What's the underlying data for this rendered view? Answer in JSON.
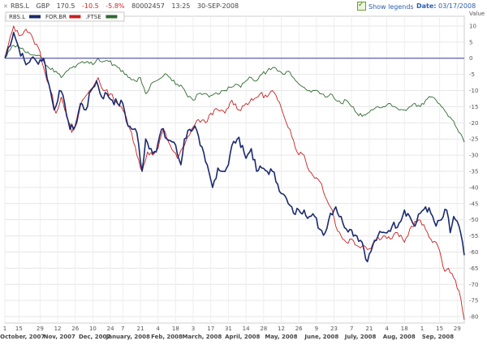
{
  "header": {
    "symbol": "RBS.L",
    "currency": "GBP",
    "price": "170.5",
    "change": "-10.5",
    "change_pct": "-5.8%",
    "volume": "80002457",
    "time": "13:25",
    "date": "30-SEP-2008",
    "show_legends_label": "Show legends",
    "date_label": "Date:",
    "date_value": "03/17/2008"
  },
  "colors": {
    "RBS.L": "#1a2a6e",
    "FOR.BR": "#c82020",
    "FTSE": "#2f6a2f",
    "zero_line": "#3a3aa0"
  },
  "chart_data": {
    "type": "line",
    "title": "",
    "ylabel": "Value",
    "ylim": [
      -82,
      12
    ],
    "grid": true,
    "legend": "top-left",
    "y_ticks": [
      10,
      5,
      0,
      -5,
      -10,
      -15,
      -20,
      -25,
      -30,
      -35,
      -40,
      -45,
      -50,
      -55,
      -60,
      -65,
      -70,
      -75,
      -80
    ],
    "day_ticks": [
      {
        "label": "1",
        "i": 0
      },
      {
        "label": "15",
        "i": 8
      },
      {
        "label": "29",
        "i": 20
      },
      {
        "label": "12",
        "i": 30
      },
      {
        "label": "26",
        "i": 40
      },
      {
        "label": "10",
        "i": 50
      },
      {
        "label": "24",
        "i": 60
      },
      {
        "label": "7",
        "i": 67
      },
      {
        "label": "21",
        "i": 77
      },
      {
        "label": "4",
        "i": 87
      },
      {
        "label": "18",
        "i": 97
      },
      {
        "label": "3",
        "i": 107
      },
      {
        "label": "17",
        "i": 117
      },
      {
        "label": "31",
        "i": 127
      },
      {
        "label": "14",
        "i": 137
      },
      {
        "label": "28",
        "i": 147
      },
      {
        "label": "12",
        "i": 157
      },
      {
        "label": "26",
        "i": 167
      },
      {
        "label": "9",
        "i": 177
      },
      {
        "label": "23",
        "i": 187
      },
      {
        "label": "7",
        "i": 197
      },
      {
        "label": "21",
        "i": 207
      },
      {
        "label": "4",
        "i": 217
      },
      {
        "label": "18",
        "i": 227
      },
      {
        "label": "1",
        "i": 237
      },
      {
        "label": "15",
        "i": 247
      },
      {
        "label": "29",
        "i": 257
      }
    ],
    "months": [
      {
        "label": "October, 2007",
        "i": 10
      },
      {
        "label": "Nov, 2007",
        "i": 31
      },
      {
        "label": "Dec, 2007",
        "i": 51
      },
      {
        "label": "January, 2008",
        "i": 70
      },
      {
        "label": "Feb, 2008",
        "i": 92
      },
      {
        "label": "March, 2008",
        "i": 112
      },
      {
        "label": "April, 2008",
        "i": 135
      },
      {
        "label": "May, 2008",
        "i": 157
      },
      {
        "label": "June, 2008",
        "i": 180
      },
      {
        "label": "July, 2008",
        "i": 202
      },
      {
        "label": "Aug, 2008",
        "i": 224
      },
      {
        "label": "Sep, 2008",
        "i": 246
      }
    ],
    "n_points": 262,
    "series": [
      {
        "name": "RBS.L",
        "anchors": [
          [
            0,
            0
          ],
          [
            5,
            8
          ],
          [
            8,
            3
          ],
          [
            12,
            -2
          ],
          [
            15,
            0
          ],
          [
            18,
            -1
          ],
          [
            22,
            0
          ],
          [
            25,
            -8
          ],
          [
            28,
            -16
          ],
          [
            31,
            -10
          ],
          [
            34,
            -14
          ],
          [
            37,
            -22
          ],
          [
            40,
            -21
          ],
          [
            43,
            -14
          ],
          [
            46,
            -16
          ],
          [
            49,
            -10
          ],
          [
            52,
            -7
          ],
          [
            55,
            -12
          ],
          [
            58,
            -11
          ],
          [
            61,
            -13
          ],
          [
            64,
            -14
          ],
          [
            67,
            -14
          ],
          [
            70,
            -21
          ],
          [
            73,
            -22
          ],
          [
            75,
            -23
          ],
          [
            78,
            -35
          ],
          [
            80,
            -25
          ],
          [
            83,
            -28
          ],
          [
            86,
            -29
          ],
          [
            89,
            -22
          ],
          [
            92,
            -25
          ],
          [
            96,
            -26
          ],
          [
            100,
            -33
          ],
          [
            102,
            -25
          ],
          [
            105,
            -22
          ],
          [
            108,
            -21
          ],
          [
            111,
            -27
          ],
          [
            114,
            -32
          ],
          [
            118,
            -40
          ],
          [
            121,
            -34
          ],
          [
            124,
            -35
          ],
          [
            127,
            -33
          ],
          [
            129,
            -27
          ],
          [
            132,
            -25
          ],
          [
            135,
            -27
          ],
          [
            137,
            -31
          ],
          [
            140,
            -28
          ],
          [
            143,
            -35
          ],
          [
            146,
            -34
          ],
          [
            149,
            -35
          ],
          [
            152,
            -35
          ],
          [
            155,
            -39
          ],
          [
            158,
            -42
          ],
          [
            161,
            -45
          ],
          [
            164,
            -48
          ],
          [
            167,
            -47
          ],
          [
            170,
            -47
          ],
          [
            173,
            -49
          ],
          [
            176,
            -49
          ],
          [
            179,
            -53
          ],
          [
            182,
            -54
          ],
          [
            185,
            -48
          ],
          [
            188,
            -46
          ],
          [
            192,
            -51
          ],
          [
            196,
            -53
          ],
          [
            200,
            -55
          ],
          [
            203,
            -57
          ],
          [
            206,
            -63
          ],
          [
            209,
            -58
          ],
          [
            212,
            -55
          ],
          [
            216,
            -54
          ],
          [
            220,
            -52
          ],
          [
            224,
            -51
          ],
          [
            227,
            -47
          ],
          [
            230,
            -49
          ],
          [
            233,
            -52
          ],
          [
            236,
            -48
          ],
          [
            239,
            -46
          ],
          [
            242,
            -48
          ],
          [
            245,
            -52
          ],
          [
            248,
            -50
          ],
          [
            251,
            -47
          ],
          [
            253,
            -54
          ],
          [
            255,
            -49
          ],
          [
            258,
            -52
          ],
          [
            261,
            -61
          ]
        ]
      },
      {
        "name": "FOR.BR",
        "anchors": [
          [
            0,
            0
          ],
          [
            5,
            10
          ],
          [
            8,
            7
          ],
          [
            12,
            9
          ],
          [
            16,
            6
          ],
          [
            20,
            2
          ],
          [
            23,
            -5
          ],
          [
            26,
            -10
          ],
          [
            29,
            -17
          ],
          [
            32,
            -12
          ],
          [
            35,
            -17
          ],
          [
            38,
            -23
          ],
          [
            41,
            -20
          ],
          [
            44,
            -13
          ],
          [
            47,
            -11
          ],
          [
            50,
            -9
          ],
          [
            53,
            -6
          ],
          [
            56,
            -10
          ],
          [
            60,
            -11
          ],
          [
            64,
            -14
          ],
          [
            68,
            -17
          ],
          [
            72,
            -23
          ],
          [
            75,
            -30
          ],
          [
            78,
            -35
          ],
          [
            81,
            -29
          ],
          [
            84,
            -30
          ],
          [
            87,
            -28
          ],
          [
            90,
            -22
          ],
          [
            94,
            -27
          ],
          [
            98,
            -31
          ],
          [
            102,
            -27
          ],
          [
            106,
            -22
          ],
          [
            110,
            -19
          ],
          [
            114,
            -20
          ],
          [
            117,
            -17
          ],
          [
            121,
            -16
          ],
          [
            125,
            -17
          ],
          [
            129,
            -13
          ],
          [
            133,
            -16
          ],
          [
            137,
            -14
          ],
          [
            141,
            -13
          ],
          [
            145,
            -11
          ],
          [
            149,
            -12
          ],
          [
            152,
            -10
          ],
          [
            155,
            -13
          ],
          [
            158,
            -17
          ],
          [
            162,
            -22
          ],
          [
            166,
            -29
          ],
          [
            170,
            -30
          ],
          [
            173,
            -35
          ],
          [
            177,
            -37
          ],
          [
            180,
            -39
          ],
          [
            183,
            -44
          ],
          [
            186,
            -47
          ],
          [
            188,
            -52
          ],
          [
            191,
            -55
          ],
          [
            194,
            -57
          ],
          [
            197,
            -56
          ],
          [
            200,
            -58
          ],
          [
            204,
            -58
          ],
          [
            207,
            -59
          ],
          [
            211,
            -56
          ],
          [
            215,
            -55
          ],
          [
            219,
            -56
          ],
          [
            223,
            -54
          ],
          [
            227,
            -57
          ],
          [
            231,
            -52
          ],
          [
            235,
            -50
          ],
          [
            239,
            -53
          ],
          [
            242,
            -56
          ],
          [
            245,
            -57
          ],
          [
            248,
            -62
          ],
          [
            250,
            -66
          ],
          [
            252,
            -65
          ],
          [
            255,
            -68
          ],
          [
            258,
            -72
          ],
          [
            260,
            -78
          ],
          [
            261,
            -81
          ]
        ]
      },
      {
        "name": ".FTSE",
        "anchors": [
          [
            0,
            0
          ],
          [
            5,
            4
          ],
          [
            9,
            3
          ],
          [
            13,
            2
          ],
          [
            17,
            1
          ],
          [
            21,
            0
          ],
          [
            25,
            -3
          ],
          [
            29,
            -4
          ],
          [
            32,
            -6
          ],
          [
            35,
            -4
          ],
          [
            38,
            -3
          ],
          [
            41,
            -2
          ],
          [
            44,
            -1
          ],
          [
            47,
            -1
          ],
          [
            50,
            -2
          ],
          [
            53,
            0
          ],
          [
            56,
            -1
          ],
          [
            59,
            -1
          ],
          [
            62,
            -2
          ],
          [
            65,
            -3
          ],
          [
            68,
            -5
          ],
          [
            71,
            -6
          ],
          [
            74,
            -7
          ],
          [
            77,
            -6
          ],
          [
            80,
            -11
          ],
          [
            83,
            -8
          ],
          [
            86,
            -7
          ],
          [
            89,
            -6
          ],
          [
            92,
            -5
          ],
          [
            95,
            -7
          ],
          [
            98,
            -8
          ],
          [
            101,
            -9
          ],
          [
            104,
            -12
          ],
          [
            107,
            -13
          ],
          [
            110,
            -11
          ],
          [
            113,
            -11
          ],
          [
            116,
            -12
          ],
          [
            119,
            -11
          ],
          [
            122,
            -11
          ],
          [
            125,
            -10
          ],
          [
            128,
            -9
          ],
          [
            131,
            -8
          ],
          [
            134,
            -9
          ],
          [
            137,
            -7
          ],
          [
            140,
            -6
          ],
          [
            143,
            -7
          ],
          [
            146,
            -5
          ],
          [
            149,
            -4
          ],
          [
            152,
            -3
          ],
          [
            155,
            -4
          ],
          [
            158,
            -5
          ],
          [
            161,
            -4
          ],
          [
            164,
            -6
          ],
          [
            167,
            -8
          ],
          [
            170,
            -9
          ],
          [
            173,
            -10
          ],
          [
            176,
            -10
          ],
          [
            179,
            -11
          ],
          [
            182,
            -12
          ],
          [
            185,
            -11
          ],
          [
            188,
            -13
          ],
          [
            191,
            -14
          ],
          [
            194,
            -13
          ],
          [
            197,
            -15
          ],
          [
            200,
            -17
          ],
          [
            203,
            -18
          ],
          [
            206,
            -17
          ],
          [
            209,
            -16
          ],
          [
            212,
            -15
          ],
          [
            215,
            -15
          ],
          [
            218,
            -14
          ],
          [
            221,
            -15
          ],
          [
            224,
            -16
          ],
          [
            227,
            -16
          ],
          [
            230,
            -15
          ],
          [
            233,
            -14
          ],
          [
            236,
            -15
          ],
          [
            239,
            -13
          ],
          [
            242,
            -12
          ],
          [
            245,
            -13
          ],
          [
            248,
            -15
          ],
          [
            251,
            -17
          ],
          [
            254,
            -19
          ],
          [
            256,
            -21
          ],
          [
            258,
            -23
          ],
          [
            261,
            -26
          ]
        ]
      }
    ]
  }
}
